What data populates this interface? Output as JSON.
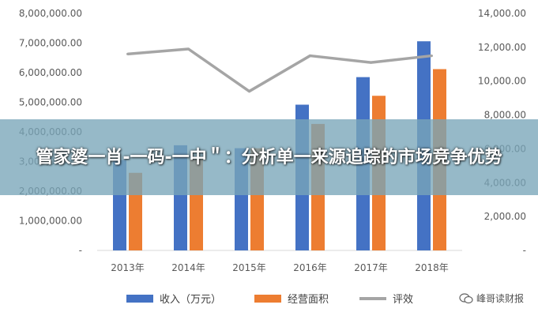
{
  "overlay": {
    "title": "管家婆一肖-一码-一中＂：分析单一来源追踪的市场竞争优势"
  },
  "watermark": {
    "text": "峰哥读财报"
  },
  "colors": {
    "income": "#4472C4",
    "area": "#ED7D31",
    "score": "#A5A5A5",
    "overlay": "#78A5B9"
  },
  "chart_data": {
    "type": "bar",
    "categories": [
      "2013年",
      "2014年",
      "2015年",
      "2016年",
      "2017年",
      "2018年"
    ],
    "series": [
      {
        "name": "收入（万元）",
        "type": "bar",
        "axis": "left",
        "values": [
          3050000,
          3550000,
          3450000,
          4920000,
          5850000,
          7060000
        ]
      },
      {
        "name": "经营面积",
        "type": "bar",
        "axis": "left",
        "values": [
          2620000,
          3070000,
          3450000,
          4270000,
          5220000,
          6120000
        ]
      },
      {
        "name": "评效",
        "type": "line",
        "axis": "right",
        "values": [
          11600,
          11900,
          9400,
          11500,
          11100,
          11500
        ]
      }
    ],
    "left_axis": {
      "min": 0,
      "max": 8000000,
      "step": 1000000,
      "ticks": [
        "-",
        "1,000,000.00",
        "2,000,000.00",
        "3,000,000.00",
        "4,000,000.00",
        "5,000,000.00",
        "6,000,000.00",
        "7,000,000.00",
        "8,000,000.00"
      ]
    },
    "right_axis": {
      "min": 0,
      "max": 14000,
      "step": 2000,
      "ticks": [
        "-",
        "2,000.00",
        "4,000.00",
        "6,000.00",
        "8,000.00",
        "10,000.00",
        "12,000.00",
        "14,000.00"
      ]
    },
    "grid": false,
    "legend": "bottom"
  }
}
